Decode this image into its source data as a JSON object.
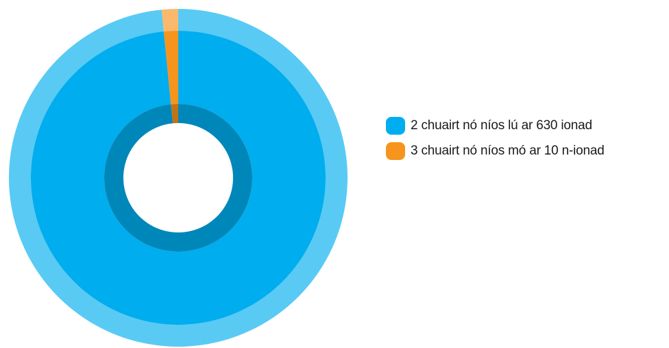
{
  "chart_data": {
    "type": "pie",
    "variant": "donut",
    "categories": [
      "2 chuairt nó níos lú ar 630 ionad",
      "3 chuairt nó níos mó ar 10 n-ionad"
    ],
    "values": [
      630,
      10
    ],
    "colors": [
      "#00adee",
      "#f7941d"
    ],
    "start_angle_deg": 0,
    "direction": "clockwise",
    "legend_position": "right"
  },
  "legend": {
    "items": [
      {
        "label": "2 chuairt nó níos lú ar 630 ionad",
        "color": "#00adee"
      },
      {
        "label": "3 chuairt nó níos mó ar 10 n-ionad",
        "color": "#f7941d"
      }
    ]
  }
}
